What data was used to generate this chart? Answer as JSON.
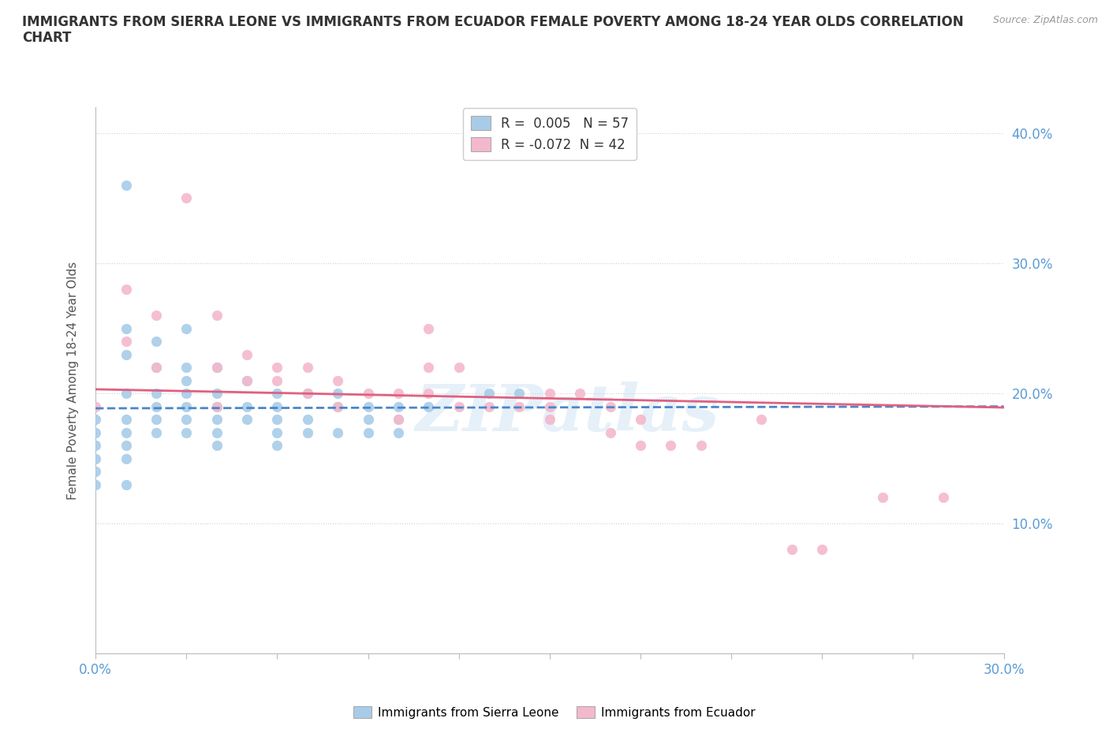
{
  "title": "IMMIGRANTS FROM SIERRA LEONE VS IMMIGRANTS FROM ECUADOR FEMALE POVERTY AMONG 18-24 YEAR OLDS CORRELATION\nCHART",
  "source": "Source: ZipAtlas.com",
  "ylabel": "Female Poverty Among 18-24 Year Olds",
  "xlim": [
    0.0,
    0.3
  ],
  "ylim": [
    0.0,
    0.42
  ],
  "xticks": [
    0.0,
    0.03,
    0.06,
    0.09,
    0.12,
    0.15,
    0.18,
    0.21,
    0.24,
    0.27,
    0.3
  ],
  "yticks": [
    0.0,
    0.1,
    0.2,
    0.3,
    0.4
  ],
  "grid_color": "#d0d0d0",
  "background_color": "#ffffff",
  "sierra_leone_color": "#a8cce8",
  "ecuador_color": "#f4b8cc",
  "sierra_leone_line_color": "#4a86c8",
  "ecuador_line_color": "#e06080",
  "sierra_leone_R": 0.005,
  "sierra_leone_N": 57,
  "ecuador_R": -0.072,
  "ecuador_N": 42,
  "watermark": "ZIPatlas",
  "legend_label_sl": "Immigrants from Sierra Leone",
  "legend_label_ec": "Immigrants from Ecuador",
  "sl_x": [
    0.0,
    0.0,
    0.0,
    0.0,
    0.0,
    0.0,
    0.01,
    0.01,
    0.01,
    0.01,
    0.01,
    0.01,
    0.01,
    0.01,
    0.01,
    0.02,
    0.02,
    0.02,
    0.02,
    0.02,
    0.02,
    0.03,
    0.03,
    0.03,
    0.03,
    0.03,
    0.03,
    0.03,
    0.04,
    0.04,
    0.04,
    0.04,
    0.04,
    0.04,
    0.05,
    0.05,
    0.05,
    0.06,
    0.06,
    0.06,
    0.06,
    0.06,
    0.07,
    0.07,
    0.07,
    0.08,
    0.08,
    0.08,
    0.09,
    0.09,
    0.09,
    0.1,
    0.1,
    0.1,
    0.11,
    0.13,
    0.14
  ],
  "sl_y": [
    0.18,
    0.17,
    0.16,
    0.15,
    0.14,
    0.13,
    0.36,
    0.25,
    0.23,
    0.2,
    0.18,
    0.17,
    0.16,
    0.15,
    0.13,
    0.24,
    0.22,
    0.2,
    0.19,
    0.18,
    0.17,
    0.25,
    0.22,
    0.21,
    0.2,
    0.19,
    0.18,
    0.17,
    0.22,
    0.2,
    0.19,
    0.18,
    0.17,
    0.16,
    0.21,
    0.19,
    0.18,
    0.2,
    0.19,
    0.18,
    0.17,
    0.16,
    0.2,
    0.18,
    0.17,
    0.2,
    0.19,
    0.17,
    0.19,
    0.18,
    0.17,
    0.19,
    0.18,
    0.17,
    0.19,
    0.2,
    0.2
  ],
  "ec_x": [
    0.0,
    0.01,
    0.01,
    0.02,
    0.02,
    0.03,
    0.04,
    0.04,
    0.04,
    0.05,
    0.05,
    0.06,
    0.06,
    0.07,
    0.07,
    0.08,
    0.08,
    0.09,
    0.1,
    0.1,
    0.11,
    0.11,
    0.11,
    0.12,
    0.12,
    0.13,
    0.14,
    0.15,
    0.15,
    0.15,
    0.16,
    0.17,
    0.17,
    0.18,
    0.18,
    0.19,
    0.2,
    0.22,
    0.23,
    0.24,
    0.26,
    0.28
  ],
  "ec_y": [
    0.19,
    0.28,
    0.24,
    0.26,
    0.22,
    0.35,
    0.26,
    0.22,
    0.19,
    0.23,
    0.21,
    0.22,
    0.21,
    0.22,
    0.2,
    0.21,
    0.19,
    0.2,
    0.2,
    0.18,
    0.25,
    0.22,
    0.2,
    0.22,
    0.19,
    0.19,
    0.19,
    0.2,
    0.19,
    0.18,
    0.2,
    0.19,
    0.17,
    0.18,
    0.16,
    0.16,
    0.16,
    0.18,
    0.08,
    0.08,
    0.12,
    0.12
  ]
}
